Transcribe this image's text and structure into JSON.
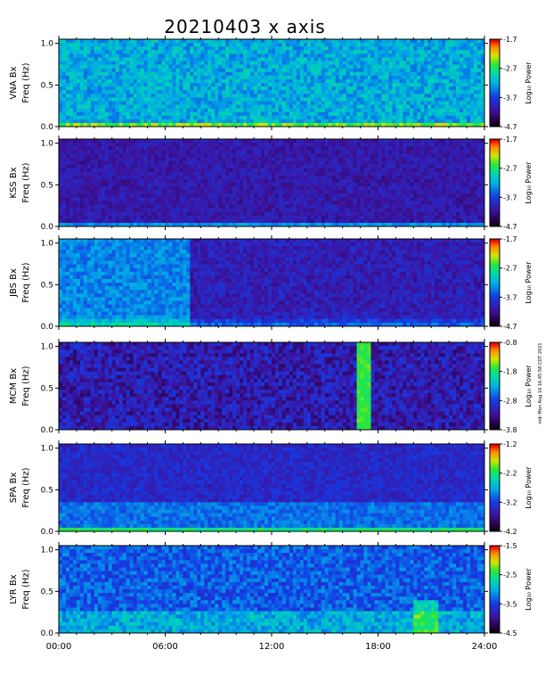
{
  "title": "20210403 x axis",
  "stamp": "mdi Mon Aug 16 16:45:58 CDT 2021",
  "chart_data": {
    "type": "heatmap",
    "title": "20210403 x axis",
    "x_ticks": [
      "00:00",
      "06:00",
      "12:00",
      "18:00",
      "24:00"
    ],
    "x_range": [
      0,
      24
    ],
    "y_ticks": [
      "0.0",
      "0.5",
      "1.0"
    ],
    "y_range": [
      0,
      1.05
    ],
    "colorbar_label": "Log₁₀ Power",
    "panels": [
      {
        "station": "VNA Bx",
        "ylabel_top": "VNA Bx",
        "ylabel_bottom": "Freq (Hz)",
        "cbar_ticks": [
          "-1.7",
          "-2.7",
          "-3.7",
          "-4.7"
        ],
        "cbar_range": [
          -4.7,
          -1.7
        ]
      },
      {
        "station": "KSS Bx",
        "ylabel_top": "KSS Bx",
        "ylabel_bottom": "Freq (Hz)",
        "cbar_ticks": [
          "-1.7",
          "-2.7",
          "-3.7",
          "-4.7"
        ],
        "cbar_range": [
          -4.7,
          -1.7
        ]
      },
      {
        "station": "JBS Bx",
        "ylabel_top": "JBS Bx",
        "ylabel_bottom": "Freq (Hz)",
        "cbar_ticks": [
          "-1.7",
          "-2.7",
          "-3.7",
          "-4.7"
        ],
        "cbar_range": [
          -4.7,
          -1.7
        ]
      },
      {
        "station": "MCM Bx",
        "ylabel_top": "MCM Bx",
        "ylabel_bottom": "Freq (Hz)",
        "cbar_ticks": [
          "-0.8",
          "-1.8",
          "-2.8",
          "-3.8"
        ],
        "cbar_range": [
          -3.8,
          -0.8
        ]
      },
      {
        "station": "SPA Bx",
        "ylabel_top": "SPA Bx",
        "ylabel_bottom": "Freq (Hz)",
        "cbar_ticks": [
          "-1.2",
          "-2.2",
          "-3.2",
          "-4.2"
        ],
        "cbar_range": [
          -4.2,
          -1.2
        ]
      },
      {
        "station": "LYR Bx",
        "ylabel_top": "LYR Bx",
        "ylabel_bottom": "Freq (Hz)",
        "cbar_ticks": [
          "-1.5",
          "-2.5",
          "-3.5",
          "-4.5"
        ],
        "cbar_range": [
          -4.5,
          -1.5
        ]
      }
    ]
  }
}
